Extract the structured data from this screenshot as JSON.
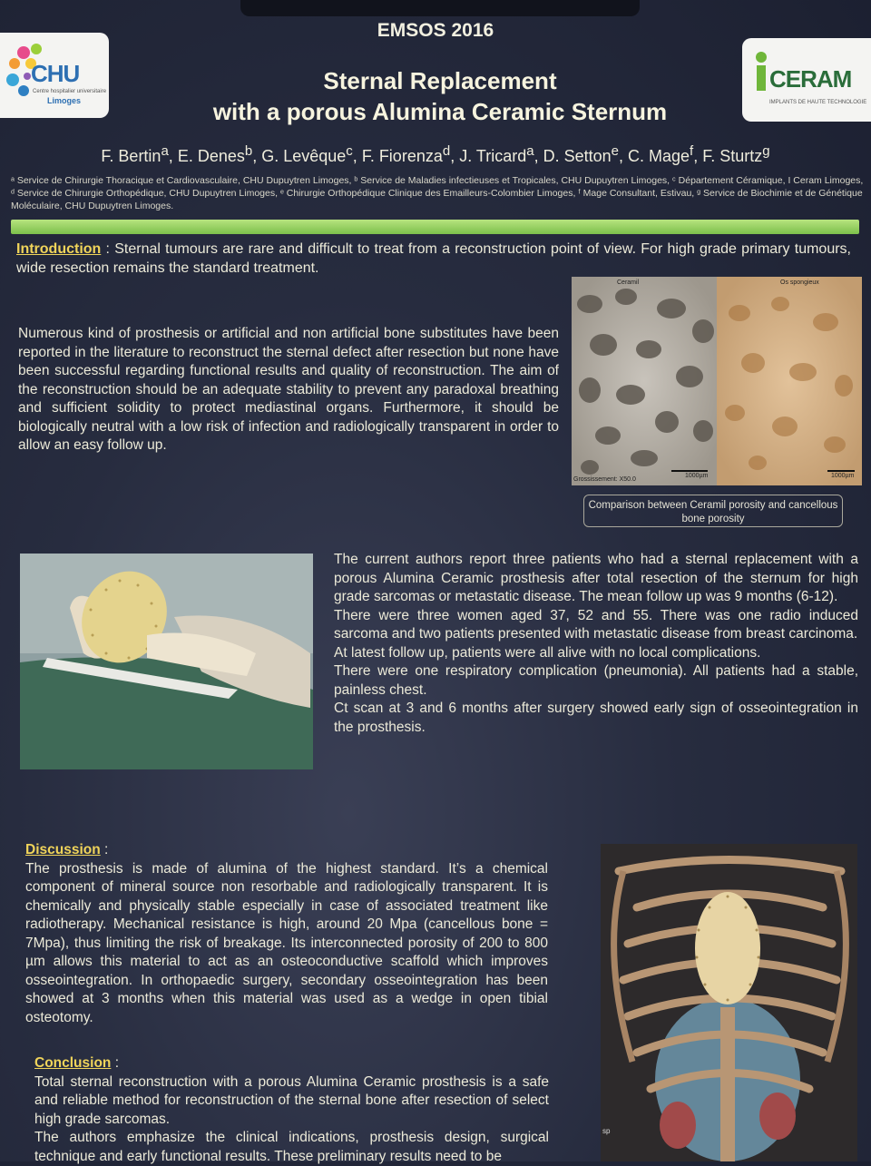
{
  "conference": "EMSOS 2016",
  "logos": {
    "chu": {
      "name": "CHU",
      "sub1": "Centre hospitalier universitaire",
      "sub2": "Limoges"
    },
    "ceram": {
      "name": "CERAM",
      "sub": "IMPLANTS DE HAUTE TECHNOLOGIE"
    }
  },
  "title": {
    "line1": "Sternal Replacement",
    "line2": "with a porous Alumina Ceramic Sternum"
  },
  "authors": [
    {
      "name": "F. Bertin",
      "sup": "a"
    },
    {
      "name": "E. Denes",
      "sup": "b"
    },
    {
      "name": "G. Levêque",
      "sup": "c"
    },
    {
      "name": "F. Fiorenza",
      "sup": "d"
    },
    {
      "name": "J. Tricard",
      "sup": "a"
    },
    {
      "name": "D. Setton",
      "sup": "e"
    },
    {
      "name": "C. Mage",
      "sup": "f"
    },
    {
      "name": "F. Sturtz",
      "sup": "g"
    }
  ],
  "affiliations": "ᵃ Service de Chirurgie Thoracique et Cardiovasculaire, CHU Dupuytren Limoges, ᵇ Service de Maladies infectieuses et Tropicales, CHU Dupuytren Limoges, ᶜ Département Céramique, I Ceram Limoges, ᵈ Service de Chirurgie Orthopédique, CHU Dupuytren Limoges, ᵉ Chirurgie Orthopédique Clinique des Emailleurs-Colombier Limoges, ᶠ Mage Consultant, Estivau, ᵍ Service de Biochimie et de Génétique Moléculaire, CHU Dupuytren Limoges.",
  "introduction": {
    "heading": "Introduction",
    "text1": " : Sternal tumours are rare and difficult to treat from a reconstruction point of view. For high grade primary tumours, wide resection remains the standard treatment.",
    "text2": "Numerous kind of prosthesis or artificial and non artificial bone substitutes have been reported in the literature to reconstruct the sternal defect after resection but none have been successful regarding functional results and quality of reconstruction. The aim of the reconstruction should be an adequate stability to prevent any paradoxal breathing and sufficient solidity to protect mediastinal organs. Furthermore, it should be biologically neutral with a low risk of infection and radiologically transparent in order to allow an easy follow up."
  },
  "micro_figure": {
    "left_label": "Ceramil",
    "right_label": "Os spongieux",
    "magnification": "Grossissement: X50.0",
    "scale_left": "1000µm",
    "scale_right": "1000µm",
    "caption": "Comparison between Ceramil porosity and cancellous bone porosity"
  },
  "cases": [
    "The current authors report three patients who had a sternal replacement with a porous Alumina Ceramic prosthesis after total resection of the sternum for high grade sarcomas or metastatic disease. The mean follow up was 9 months (6-12).",
    "There were three women aged 37, 52 and 55. There was one radio induced sarcoma and two patients presented with metastatic disease from breast carcinoma.",
    "At latest follow up, patients were all alive with no local complications.",
    "There were one respiratory complication (pneumonia). All patients had a stable, painless chest.",
    "Ct scan at 3 and 6 months after surgery showed early sign of osseointegration in the prosthesis."
  ],
  "discussion": {
    "heading": "Discussion",
    "sep": " :",
    "text": "The prosthesis is made of alumina of the highest standard. It’s a chemical component of mineral source non resorbable and radiologically transparent. It is chemically  and physically stable especially in case of associated treatment like radiotherapy. Mechanical resistance is high, around 20 Mpa (cancellous bone = 7Mpa), thus limiting the risk of breakage. Its interconnected porosity of 200 to 800 µm allows this material to act as an osteoconductive scaffold which improves osseointegration. In orthopaedic surgery, secondary osseointegration has been showed at 3 months when this material was used as a wedge in open tibial osteotomy."
  },
  "conclusion": {
    "heading": "Conclusion",
    "sep": " :",
    "text1": "Total sternal reconstruction with a porous Alumina Ceramic prosthesis is a safe and reliable method for reconstruction of the sternal bone after resection of select high grade sarcomas.",
    "text2": "The authors emphasize the clinical indications, prosthesis design, surgical technique and early functional results.  These preliminary results need to be"
  },
  "ct_label": "sp"
}
